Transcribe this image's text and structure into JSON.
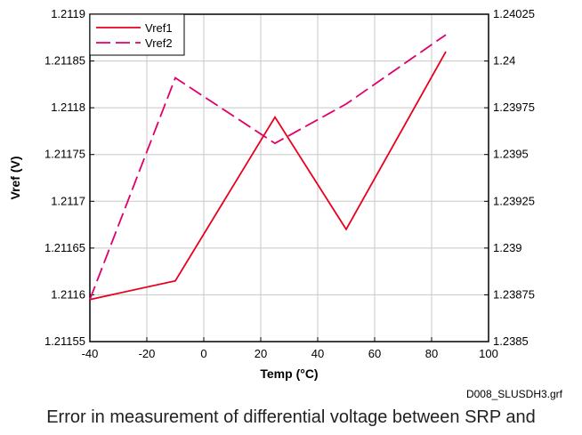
{
  "chart_data": {
    "type": "line",
    "xlabel": "Temp (°C)",
    "ylabel": "Vref (V)",
    "xlim": [
      -40,
      100
    ],
    "ylim": [
      1.21155,
      1.2119
    ],
    "y2lim": [
      1.2385,
      1.24025
    ],
    "x_ticks": [
      "-40",
      "-20",
      "0",
      "20",
      "40",
      "60",
      "80",
      "100"
    ],
    "y_ticks": [
      "1.2119",
      "1.21185",
      "1.2118",
      "1.21175",
      "1.2117",
      "1.21165",
      "1.2116",
      "1.21155"
    ],
    "y2_ticks": [
      "1.24025",
      "1.24",
      "1.23975",
      "1.2395",
      "1.23925",
      "1.239",
      "1.23875",
      "1.2385"
    ],
    "grid": true,
    "legend_position": "top-left",
    "series": [
      {
        "name": "Vref1",
        "axis": "left",
        "color": "#e8001c",
        "style": "solid",
        "x": [
          -40,
          -10,
          25,
          50,
          85
        ],
        "y": [
          1.211595,
          1.211615,
          1.21179,
          1.21167,
          1.21186
        ]
      },
      {
        "name": "Vref2",
        "axis": "right",
        "color": "#e0006a",
        "style": "dashed",
        "x": [
          -40,
          -10,
          25,
          50,
          85
        ],
        "y": [
          1.238725,
          1.23991,
          1.23956,
          1.23977,
          1.24014
        ]
      }
    ]
  },
  "footnote": "D008_SLUSDH3.grf",
  "caption": "Error in measurement of differential voltage between SRP and"
}
